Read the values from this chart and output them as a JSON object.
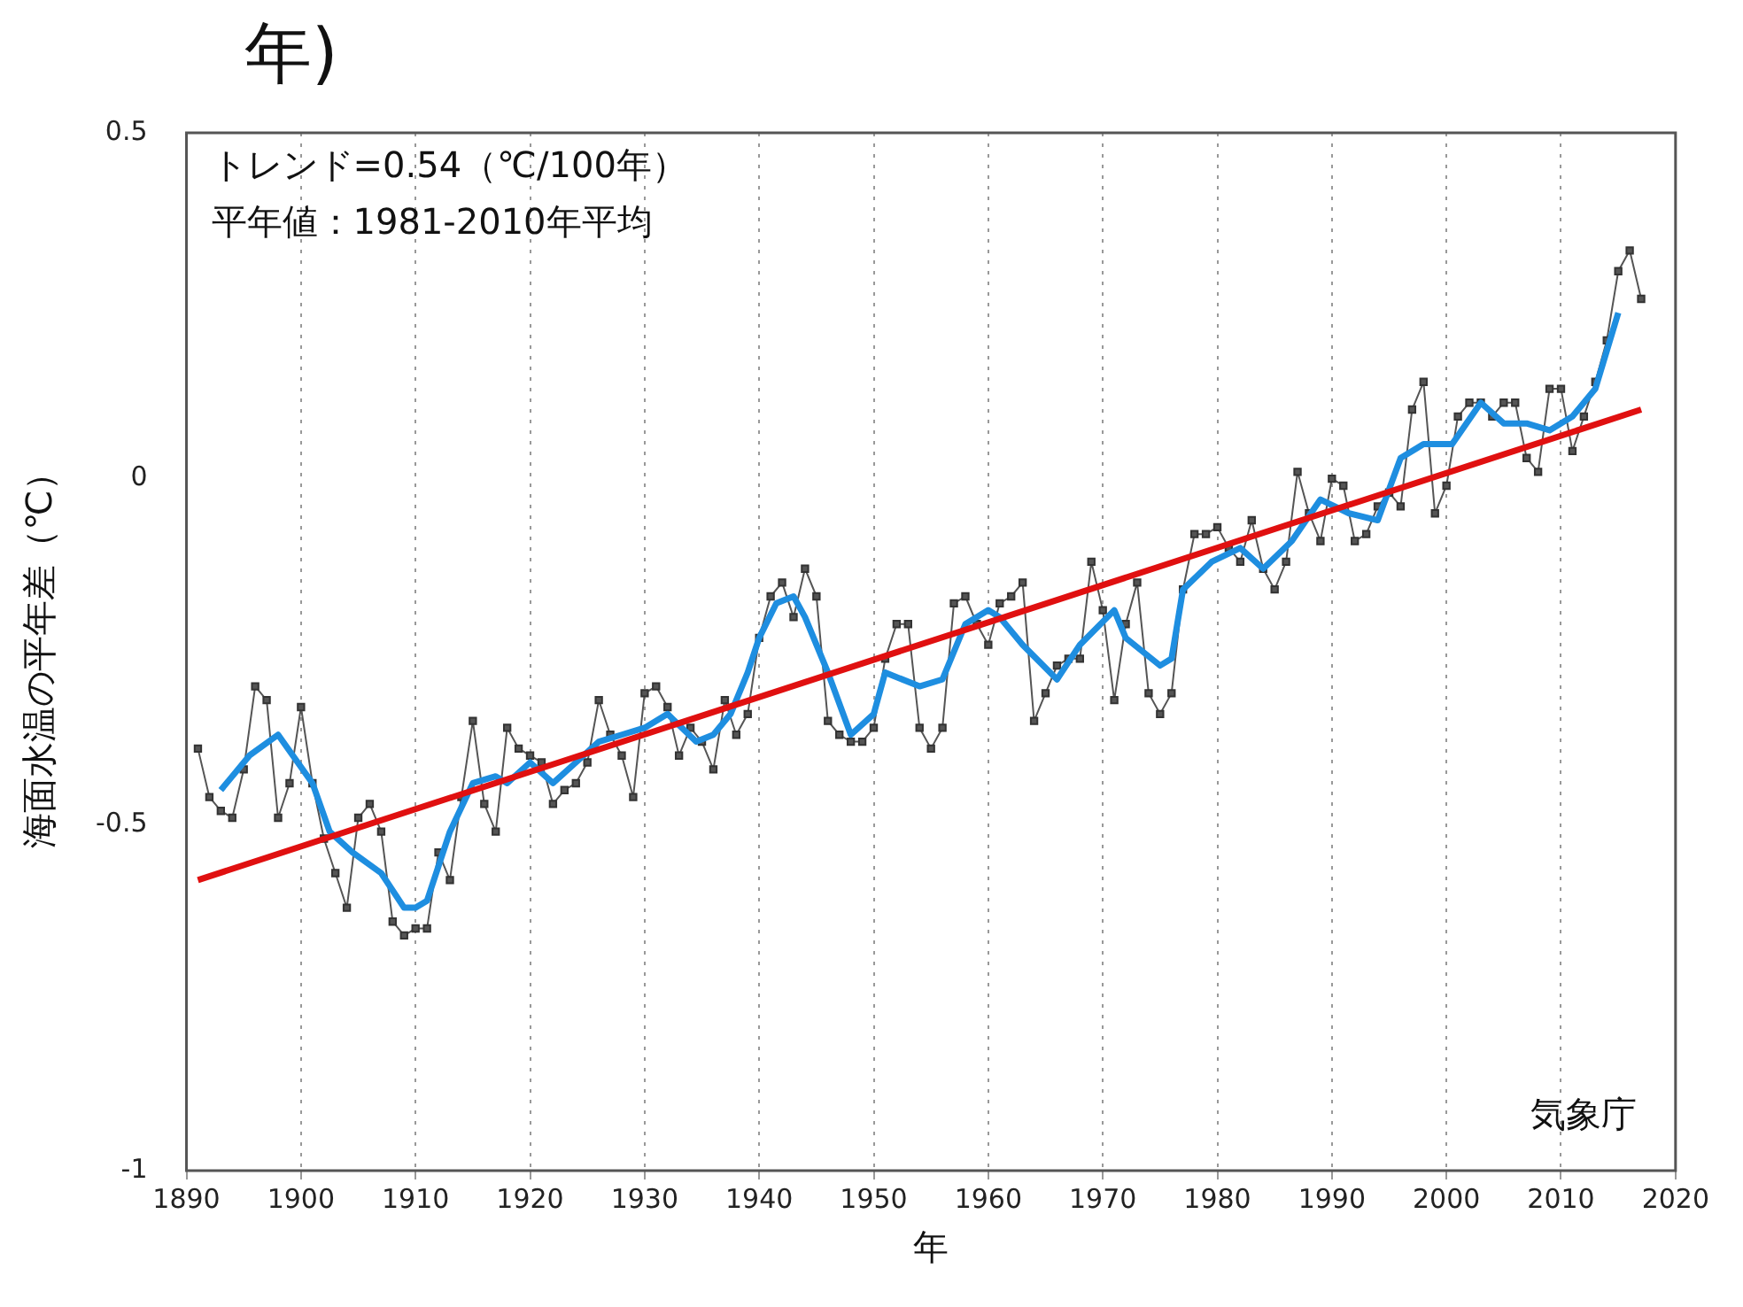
{
  "chart_data": {
    "type": "line",
    "title": "年)",
    "xlabel": "年",
    "ylabel": "海面水温の平年差（℃）",
    "annotations": [
      "トレンド=0.54（℃/100年）",
      "平年値：1981-2010年平均",
      "気象庁"
    ],
    "xlim": [
      1890,
      2020
    ],
    "xticks": [
      1890,
      1900,
      1910,
      1920,
      1930,
      1940,
      1950,
      1960,
      1970,
      1980,
      1990,
      2000,
      2010,
      2020
    ],
    "ylim": [
      -1,
      0.5
    ],
    "yticks": [
      -1,
      -0.5,
      0,
      0.5
    ],
    "grid": "x",
    "legend": false,
    "series": [
      {
        "type": "line",
        "color": "#555555",
        "marker": "square",
        "line_style": "solid",
        "x": [
          1891,
          1892,
          1893,
          1894,
          1895,
          1896,
          1897,
          1898,
          1899,
          1900,
          1901,
          1902,
          1903,
          1904,
          1905,
          1906,
          1907,
          1908,
          1909,
          1910,
          1911,
          1912,
          1913,
          1914,
          1915,
          1916,
          1917,
          1918,
          1919,
          1920,
          1921,
          1922,
          1923,
          1924,
          1925,
          1926,
          1927,
          1928,
          1929,
          1930,
          1931,
          1932,
          1933,
          1934,
          1935,
          1936,
          1937,
          1938,
          1939,
          1940,
          1941,
          1942,
          1943,
          1944,
          1945,
          1946,
          1947,
          1948,
          1949,
          1950,
          1951,
          1952,
          1953,
          1954,
          1955,
          1956,
          1957,
          1958,
          1959,
          1960,
          1961,
          1962,
          1963,
          1964,
          1965,
          1966,
          1967,
          1968,
          1969,
          1970,
          1971,
          1972,
          1973,
          1974,
          1975,
          1976,
          1977,
          1978,
          1979,
          1980,
          1981,
          1982,
          1983,
          1984,
          1985,
          1986,
          1987,
          1988,
          1989,
          1990,
          1991,
          1992,
          1993,
          1994,
          1995,
          1996,
          1997,
          1998,
          1999,
          2000,
          2001,
          2002,
          2003,
          2004,
          2005,
          2006,
          2007,
          2008,
          2009,
          2010,
          2011,
          2012,
          2013,
          2014,
          2015,
          2016,
          2017
        ],
        "values": [
          -0.39,
          -0.46,
          -0.48,
          -0.49,
          -0.42,
          -0.3,
          -0.32,
          -0.49,
          -0.44,
          -0.33,
          -0.44,
          -0.52,
          -0.57,
          -0.62,
          -0.49,
          -0.47,
          -0.51,
          -0.64,
          -0.66,
          -0.65,
          -0.65,
          -0.54,
          -0.58,
          -0.46,
          -0.35,
          -0.47,
          -0.51,
          -0.36,
          -0.39,
          -0.4,
          -0.41,
          -0.47,
          -0.45,
          -0.44,
          -0.41,
          -0.32,
          -0.37,
          -0.4,
          -0.46,
          -0.31,
          -0.3,
          -0.33,
          -0.4,
          -0.36,
          -0.38,
          -0.42,
          -0.32,
          -0.37,
          -0.34,
          -0.23,
          -0.17,
          -0.15,
          -0.2,
          -0.13,
          -0.17,
          -0.35,
          -0.37,
          -0.38,
          -0.38,
          -0.36,
          -0.26,
          -0.21,
          -0.21,
          -0.36,
          -0.39,
          -0.36,
          -0.18,
          -0.17,
          -0.21,
          -0.24,
          -0.18,
          -0.17,
          -0.15,
          -0.35,
          -0.31,
          -0.27,
          -0.26,
          -0.26,
          -0.12,
          -0.19,
          -0.32,
          -0.21,
          -0.15,
          -0.31,
          -0.34,
          -0.31,
          -0.16,
          -0.08,
          -0.08,
          -0.07,
          -0.1,
          -0.12,
          -0.06,
          -0.13,
          -0.16,
          -0.12,
          0.01,
          -0.05,
          -0.09,
          0.0,
          -0.01,
          -0.09,
          -0.08,
          -0.04,
          -0.02,
          -0.04,
          0.1,
          0.14,
          -0.05,
          -0.01,
          0.09,
          0.11,
          0.11,
          0.09,
          0.11,
          0.11,
          0.03,
          0.01,
          0.13,
          0.13,
          0.04,
          0.09,
          0.14,
          0.2,
          0.3,
          0.33,
          0.26
        ]
      },
      {
        "type": "line",
        "color": "#1e8ee0",
        "marker": "none",
        "line_style": "solid",
        "x": [
          1893,
          1895.5,
          1898,
          1901,
          1902.5,
          1904.5,
          1907,
          1909,
          1910,
          1911,
          1913,
          1915,
          1917,
          1918,
          1920,
          1922,
          1924,
          1926,
          1928,
          1930,
          1932,
          1934.5,
          1936,
          1937.5,
          1939,
          1940,
          1941.5,
          1943,
          1944,
          1946,
          1948,
          1950,
          1951,
          1954,
          1956,
          1958,
          1960,
          1961,
          1963,
          1966,
          1968,
          1971,
          1972,
          1975,
          1976,
          1977,
          1979.5,
          1982,
          1984,
          1986.5,
          1989,
          1991.5,
          1994,
          1996,
          1998,
          2000.5,
          2003,
          2005,
          2007,
          2009,
          2011,
          2013,
          2015
        ],
        "values": [
          -0.45,
          -0.4,
          -0.37,
          -0.44,
          -0.51,
          -0.54,
          -0.57,
          -0.62,
          -0.62,
          -0.61,
          -0.51,
          -0.44,
          -0.43,
          -0.44,
          -0.41,
          -0.44,
          -0.41,
          -0.38,
          -0.37,
          -0.36,
          -0.34,
          -0.38,
          -0.37,
          -0.34,
          -0.28,
          -0.23,
          -0.18,
          -0.17,
          -0.2,
          -0.28,
          -0.37,
          -0.34,
          -0.28,
          -0.3,
          -0.29,
          -0.21,
          -0.19,
          -0.2,
          -0.24,
          -0.29,
          -0.24,
          -0.19,
          -0.23,
          -0.27,
          -0.26,
          -0.16,
          -0.12,
          -0.1,
          -0.13,
          -0.09,
          -0.03,
          -0.05,
          -0.06,
          0.03,
          0.05,
          0.05,
          0.11,
          0.08,
          0.08,
          0.07,
          0.09,
          0.13,
          0.24
        ]
      },
      {
        "type": "line",
        "color": "#e01010",
        "marker": "none",
        "line_style": "solid",
        "x": [
          1891,
          2017
        ],
        "values": [
          -0.58,
          0.1
        ]
      }
    ]
  }
}
